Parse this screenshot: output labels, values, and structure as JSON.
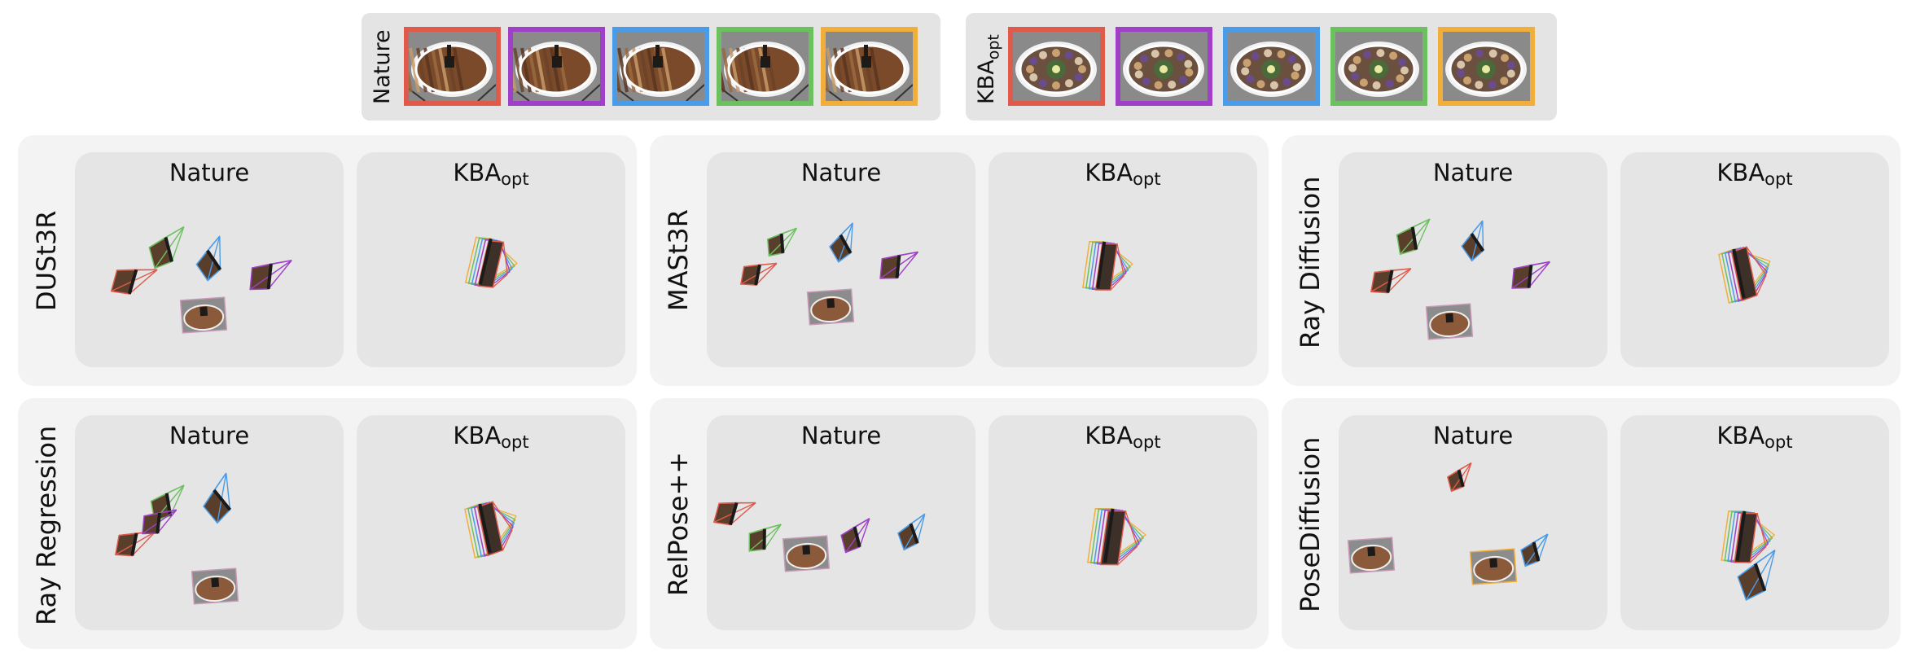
{
  "strips": [
    {
      "label": "Nature",
      "sub": "",
      "theme": "wood"
    },
    {
      "label": "KBA",
      "sub": "opt",
      "theme": "kba"
    }
  ],
  "thumb_border_colors": [
    "#e05a4b",
    "#a040c8",
    "#4a9ce8",
    "#6cc060",
    "#f2ae3a"
  ],
  "panels": [
    {
      "label": "DUSt3R",
      "nature": {
        "title": "Nature",
        "sub": ""
      },
      "kba": {
        "title": "KBA",
        "sub": "opt"
      }
    },
    {
      "label": "MASt3R",
      "nature": {
        "title": "Nature",
        "sub": ""
      },
      "kba": {
        "title": "KBA",
        "sub": "opt"
      }
    },
    {
      "label": "Ray Diffusion",
      "nature": {
        "title": "Nature",
        "sub": ""
      },
      "kba": {
        "title": "KBA",
        "sub": "opt"
      }
    },
    {
      "label": "Ray Regression",
      "nature": {
        "title": "Nature",
        "sub": ""
      },
      "kba": {
        "title": "KBA",
        "sub": "opt"
      }
    },
    {
      "label": "RelPose++",
      "nature": {
        "title": "Nature",
        "sub": ""
      },
      "kba": {
        "title": "KBA",
        "sub": "opt"
      }
    },
    {
      "label": "PoseDiffusion",
      "nature": {
        "title": "Nature",
        "sub": ""
      },
      "kba": {
        "title": "KBA",
        "sub": "opt"
      }
    }
  ]
}
